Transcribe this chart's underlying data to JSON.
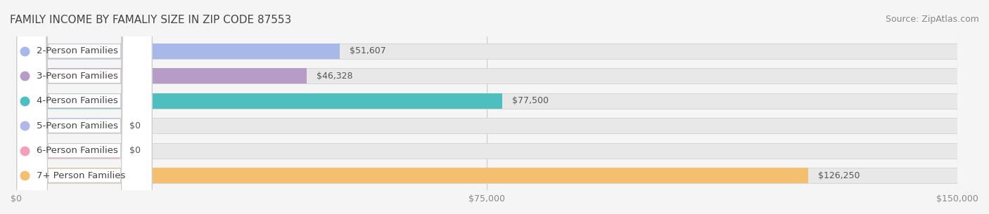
{
  "title": "FAMILY INCOME BY FAMALIY SIZE IN ZIP CODE 87553",
  "source": "Source: ZipAtlas.com",
  "categories": [
    "2-Person Families",
    "3-Person Families",
    "4-Person Families",
    "5-Person Families",
    "6-Person Families",
    "7+ Person Families"
  ],
  "values": [
    51607,
    46328,
    77500,
    0,
    0,
    126250
  ],
  "bar_colors": [
    "#a8b8e8",
    "#b89cc8",
    "#4dbfbf",
    "#b0b8e8",
    "#f4a0b8",
    "#f4c070"
  ],
  "label_colors": [
    "#a8b8e8",
    "#b89cc8",
    "#4dbfbf",
    "#b0b8e8",
    "#f4a0b8",
    "#f4c070"
  ],
  "value_labels": [
    "$51,607",
    "$46,328",
    "$77,500",
    "$0",
    "$0",
    "$126,250"
  ],
  "xlim": [
    0,
    150000
  ],
  "xticks": [
    0,
    75000,
    150000
  ],
  "xticklabels": [
    "$0",
    "$75,000",
    "$150,000"
  ],
  "background_color": "#f5f5f5",
  "bar_background_color": "#e8e8e8",
  "title_fontsize": 11,
  "source_fontsize": 9,
  "label_fontsize": 9.5,
  "value_fontsize": 9,
  "bar_height": 0.62,
  "figsize": [
    14.06,
    3.05
  ]
}
